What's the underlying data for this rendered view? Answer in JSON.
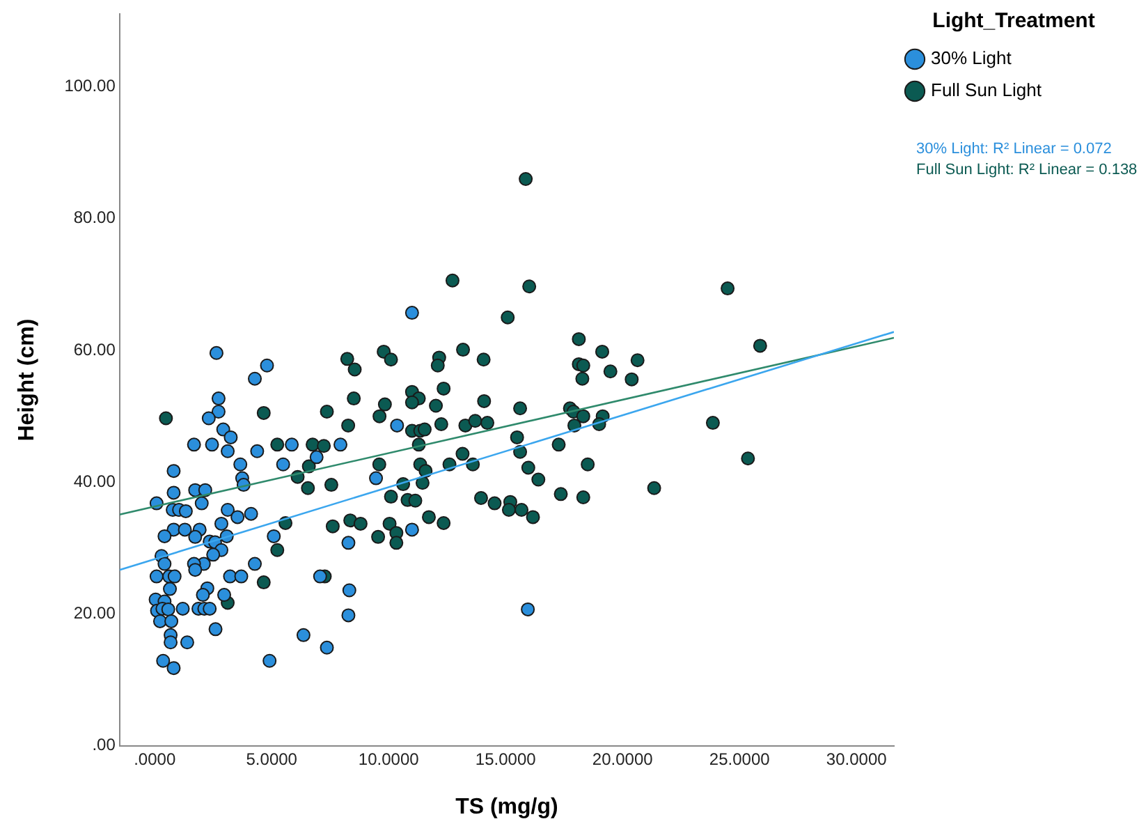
{
  "chart_data": {
    "type": "scatter",
    "xlabel": "TS (mg/g)",
    "ylabel": "Height (cm)",
    "legend_title": "Light_Treatment",
    "legend": "top right",
    "marker": "circle",
    "grid": false,
    "xlim": [
      -1.5,
      31.6
    ],
    "ylim": [
      0,
      111
    ],
    "xticks": [
      {
        "value": 0,
        "label": ".0000"
      },
      {
        "value": 5,
        "label": "5.0000"
      },
      {
        "value": 10,
        "label": "10.0000"
      },
      {
        "value": 15,
        "label": "15.0000"
      },
      {
        "value": 20,
        "label": "20.0000"
      },
      {
        "value": 25,
        "label": "25.0000"
      },
      {
        "value": 30,
        "label": "30.0000"
      }
    ],
    "yticks": [
      {
        "value": 0,
        "label": ".00"
      },
      {
        "value": 20,
        "label": "20.00"
      },
      {
        "value": 40,
        "label": "40.00"
      },
      {
        "value": 60,
        "label": "60.00"
      },
      {
        "value": 80,
        "label": "80.00"
      },
      {
        "value": 100,
        "label": "100.00"
      }
    ],
    "annotations": [
      "30% Light: R² Linear = 0.072",
      "Full Sun Light: R² Linear = 0.138"
    ],
    "series": [
      {
        "name": "30% Light",
        "color": "#2b8fdc",
        "x": [
          2.64,
          4.8,
          4.28,
          2.73,
          2.73,
          2.31,
          2.93,
          3.25,
          1.68,
          2.45,
          3.12,
          4.38,
          5.86,
          7.94,
          6.92,
          5.49,
          3.66,
          0.81,
          3.74,
          3.8,
          0.81,
          1.73,
          2.16,
          0.08,
          2.01,
          0.77,
          1.04,
          1.33,
          3.12,
          4.12,
          3.54,
          2.85,
          0.81,
          1.29,
          1.92,
          0.42,
          1.73,
          3.08,
          2.35,
          2.58,
          5.09,
          8.28,
          2.85,
          2.5,
          0.29,
          0.42,
          2.1,
          1.68,
          1.73,
          4.28,
          0.08,
          0.62,
          0.85,
          3.22,
          3.7,
          7.07,
          0.65,
          2.25,
          2.06,
          0.04,
          0.42,
          2.97,
          8.32,
          0.1,
          0.33,
          0.58,
          1.2,
          1.87,
          2.12,
          2.35,
          0.23,
          0.71,
          8.28,
          2.6,
          0.68,
          0.68,
          1.39,
          6.36,
          7.36,
          0.36,
          0.81,
          4.91,
          11.0,
          10.36,
          9.46,
          11.0,
          15.95
        ],
        "values": [
          59.6,
          57.7,
          55.7,
          52.7,
          50.7,
          49.7,
          48.0,
          46.8,
          45.7,
          45.7,
          44.7,
          44.7,
          45.7,
          45.7,
          43.8,
          42.7,
          42.7,
          41.7,
          40.6,
          39.6,
          38.4,
          38.8,
          38.8,
          36.8,
          36.8,
          35.8,
          35.8,
          35.6,
          35.8,
          35.2,
          34.7,
          33.7,
          32.8,
          32.8,
          32.8,
          31.8,
          31.7,
          31.8,
          31.0,
          30.9,
          31.8,
          30.8,
          29.7,
          29.0,
          28.8,
          27.6,
          27.6,
          27.6,
          26.7,
          27.6,
          25.7,
          25.7,
          25.7,
          25.7,
          25.7,
          25.7,
          23.8,
          23.9,
          22.9,
          22.2,
          21.9,
          22.9,
          23.6,
          20.5,
          20.8,
          20.7,
          20.8,
          20.8,
          20.8,
          20.8,
          18.9,
          18.9,
          19.8,
          17.7,
          16.8,
          15.7,
          15.7,
          16.8,
          14.9,
          12.9,
          11.8,
          12.9,
          65.7,
          48.6,
          40.6,
          32.8,
          20.7
        ]
      },
      {
        "name": "Full Sun Light",
        "color": "#0b5a52",
        "x": [
          0.48,
          8.23,
          8.55,
          8.51,
          4.66,
          7.36,
          8.27,
          5.24,
          6.75,
          7.23,
          6.59,
          6.11,
          6.55,
          7.55,
          5.59,
          7.61,
          8.36,
          8.8,
          5.24,
          7.27,
          4.66,
          3.12,
          15.86,
          12.73,
          16.01,
          15.09,
          18.13,
          19.13,
          18.13,
          18.32,
          18.28,
          19.48,
          9.79,
          10.1,
          12.16,
          12.1,
          13.18,
          14.06,
          9.84,
          9.61,
          11.0,
          11.29,
          11.0,
          12.35,
          12.02,
          14.08,
          15.62,
          17.75,
          17.9,
          18.32,
          19.15,
          19.0,
          11.0,
          11.35,
          11.54,
          12.25,
          13.28,
          13.7,
          14.22,
          17.94,
          11.29,
          15.49,
          15.62,
          17.27,
          11.35,
          11.58,
          12.6,
          13.16,
          13.6,
          15.97,
          18.51,
          9.6,
          16.4,
          11.45,
          10.62,
          10.1,
          10.81,
          11.14,
          13.95,
          14.53,
          15.2,
          15.14,
          15.68,
          16.17,
          17.36,
          18.32,
          11.72,
          12.35,
          10.04,
          10.33,
          10.33,
          9.55,
          24.49,
          25.88,
          20.64,
          20.39,
          23.86,
          25.36,
          21.35
        ],
        "values": [
          49.7,
          58.7,
          57.1,
          52.7,
          50.5,
          50.7,
          48.6,
          45.7,
          45.7,
          45.5,
          42.4,
          40.8,
          39.1,
          39.6,
          33.8,
          33.3,
          34.2,
          33.7,
          29.7,
          25.7,
          24.8,
          21.7,
          86.0,
          70.6,
          69.7,
          65.0,
          61.7,
          59.8,
          57.9,
          57.7,
          55.7,
          56.8,
          59.8,
          58.6,
          58.9,
          57.7,
          60.1,
          58.6,
          51.8,
          50.0,
          53.7,
          52.7,
          52.1,
          54.2,
          51.6,
          52.3,
          51.2,
          51.2,
          50.7,
          50.0,
          50.0,
          48.8,
          47.8,
          47.8,
          48.0,
          48.8,
          48.6,
          49.3,
          49.0,
          48.6,
          45.7,
          46.8,
          44.6,
          45.7,
          42.7,
          41.7,
          42.7,
          44.3,
          42.7,
          42.2,
          42.7,
          42.7,
          40.4,
          39.9,
          39.7,
          37.8,
          37.3,
          37.2,
          37.6,
          36.8,
          37.0,
          35.8,
          35.8,
          34.7,
          38.2,
          37.7,
          34.7,
          33.8,
          33.7,
          32.3,
          30.8,
          31.7,
          69.4,
          60.7,
          58.5,
          55.6,
          49.0,
          43.6,
          39.1
        ]
      },
      {
        "type": "line",
        "marker": "none",
        "color": "#3ba6ee",
        "x": [
          -1.5,
          31.6
        ],
        "values": [
          26.7,
          62.8
        ]
      },
      {
        "type": "line",
        "marker": "none",
        "color": "#2f8a6c",
        "x": [
          -1.5,
          31.6
        ],
        "values": [
          35.1,
          61.9
        ]
      }
    ]
  }
}
